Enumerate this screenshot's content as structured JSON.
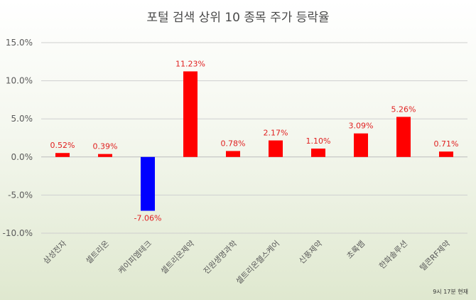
{
  "chart_data": {
    "type": "bar",
    "title": "포털 검색 상위 10 종목 주가 등락율",
    "categories": [
      "삼성전자",
      "셀트리온",
      "케이피엠테크",
      "셀트리온제약",
      "진원생명과학",
      "셀트리온헬스케어",
      "신풍제약",
      "초록뱀",
      "한화솔루션",
      "텔콘RF제약"
    ],
    "values": [
      0.52,
      0.39,
      -7.06,
      11.23,
      0.78,
      2.17,
      1.1,
      3.09,
      5.26,
      0.71
    ],
    "value_labels": [
      "0.52%",
      "0.39%",
      "-7.06%",
      "11.23%",
      "0.78%",
      "2.17%",
      "1.10%",
      "3.09%",
      "5.26%",
      "0.71%"
    ],
    "ylim": [
      -10,
      15
    ],
    "yticks": [
      15,
      10,
      5,
      0,
      -5,
      -10
    ],
    "ytick_labels": [
      "15.0%",
      "10.0%",
      "5.0%",
      "0.0%",
      "-5.0%",
      "-10.0%"
    ],
    "xlabel": "",
    "ylabel": "",
    "grid": true,
    "footnote": "9시 17분 현재",
    "colors": {
      "positive": "#ff0000",
      "negative": "#0000ff",
      "label_text": "#e02020"
    }
  }
}
